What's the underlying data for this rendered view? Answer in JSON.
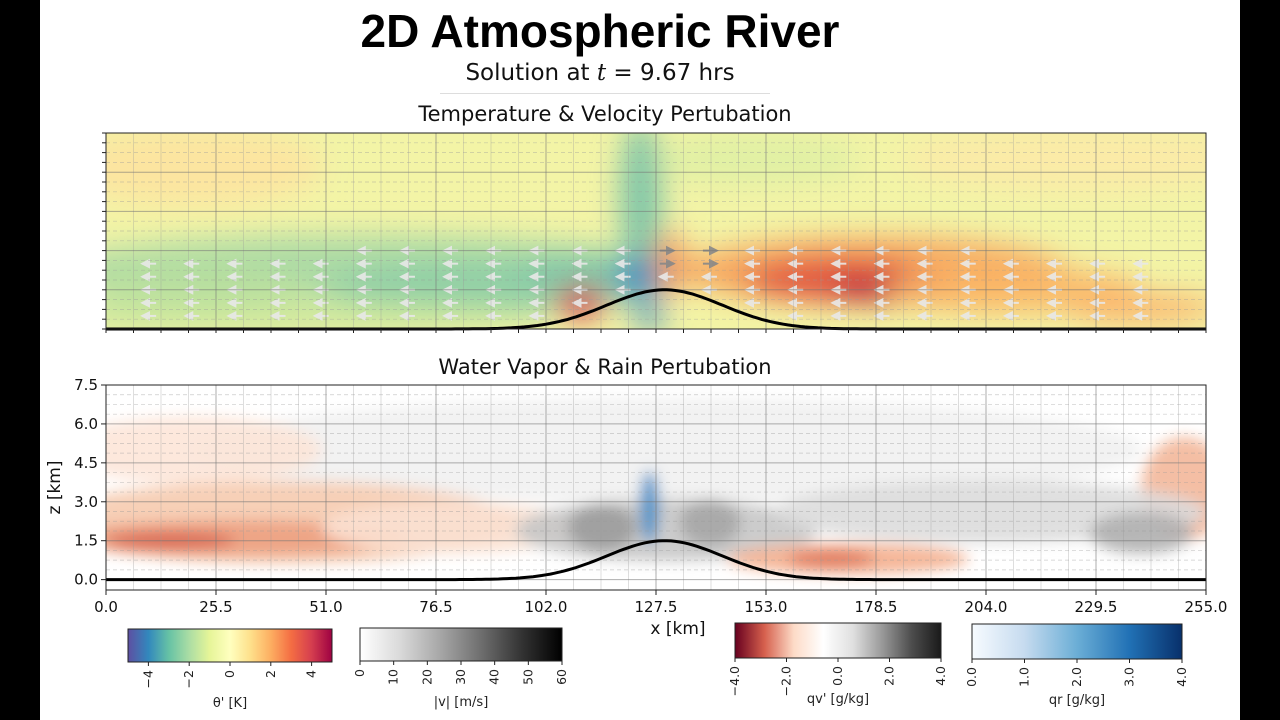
{
  "title": "2D Atmospheric River",
  "subtitle": {
    "prefix": "Solution at ",
    "tvar": "t",
    "value": " = 9.67 hrs"
  },
  "chart_data": [
    {
      "type": "heatmap",
      "title": "Temperature & Velocity Pertubation",
      "field": "theta'",
      "overlay": "velocity perturbation arrows",
      "xlim": [
        0.0,
        255.0
      ],
      "ylim": [
        0.0,
        7.5
      ],
      "grid": true,
      "terrain": {
        "type": "gaussian hill",
        "center_x": 129.5,
        "peak_z": 1.5,
        "half_width": 19
      },
      "features": [
        {
          "name": "warm anomaly lee side",
          "x": [
            150,
            205
          ],
          "z": [
            1.0,
            3.0
          ],
          "value": 4.5
        },
        {
          "name": "cool band upwind",
          "x": [
            5,
            120
          ],
          "z": [
            0.5,
            3.0
          ],
          "value": -1.5
        },
        {
          "name": "plume near crest",
          "x": [
            118,
            132
          ],
          "z": [
            1.0,
            7.5
          ],
          "value": -2.5
        }
      ]
    },
    {
      "type": "heatmap",
      "title": "Water Vapor & Rain Pertubation",
      "field": "qv'",
      "xlabel": "x [km]",
      "ylabel": "z [km]",
      "xticks": [
        "0.0",
        "25.5",
        "51.0",
        "76.5",
        "102.0",
        "127.5",
        "153.0",
        "178.5",
        "204.0",
        "229.5",
        "255.0"
      ],
      "yticks": [
        "0.0",
        "1.5",
        "3.0",
        "4.5",
        "6.0",
        "7.5"
      ],
      "xlim": [
        0.0,
        255.0
      ],
      "ylim": [
        -0.4,
        7.5
      ],
      "grid": true,
      "terrain": {
        "type": "gaussian hill",
        "center_x": 129.5,
        "peak_z": 1.5,
        "half_width": 19
      },
      "features": [
        {
          "name": "moist layer upwind",
          "x": [
            0,
            100
          ],
          "z": [
            1.0,
            3.0
          ],
          "value": -2.5
        },
        {
          "name": "dry region lee",
          "x": [
            150,
            200
          ],
          "z": [
            0.3,
            1.3
          ],
          "value": -2.0
        },
        {
          "name": "rain shaft",
          "x": [
            124,
            128
          ],
          "z": [
            1.5,
            4.5
          ],
          "value": 2.5
        }
      ]
    }
  ],
  "colorbars": [
    {
      "name": "theta-colorbar",
      "label": "θ' [K]",
      "ticks": [
        "−4",
        "−2",
        "0",
        "2",
        "4"
      ],
      "range": [
        -5,
        5
      ],
      "colors": [
        "#5e4fa2",
        "#3288bd",
        "#66c2a5",
        "#abdda4",
        "#e6f598",
        "#ffffbf",
        "#fee08b",
        "#fdae61",
        "#f46d43",
        "#d53e4f",
        "#9e0142"
      ]
    },
    {
      "name": "speed-colorbar",
      "label": "|v| [m/s]",
      "ticks": [
        "0",
        "10",
        "20",
        "30",
        "40",
        "50",
        "60"
      ],
      "range": [
        0,
        60
      ],
      "colors": [
        "#ffffff",
        "#d9d9d9",
        "#a6a6a6",
        "#6e6e6e",
        "#333333",
        "#000000"
      ]
    },
    {
      "name": "qv-colorbar",
      "label": "qv' [g/kg]",
      "ticks": [
        "−4.0",
        "−2.0",
        "0.0",
        "2.0",
        "4.0"
      ],
      "range": [
        -4,
        4
      ],
      "colors": [
        "#67001f",
        "#d6604d",
        "#fddbc7",
        "#ffffff",
        "#e0e0e0",
        "#999999",
        "#4d4d4d",
        "#1a1a1a"
      ]
    },
    {
      "name": "qr-colorbar",
      "label": "qr [g/kg]",
      "ticks": [
        "0.0",
        "1.0",
        "2.0",
        "3.0",
        "4.0"
      ],
      "range": [
        0,
        4
      ],
      "colors": [
        "#f7fbff",
        "#c6dbef",
        "#6baed6",
        "#2171b5",
        "#08306b"
      ]
    }
  ]
}
